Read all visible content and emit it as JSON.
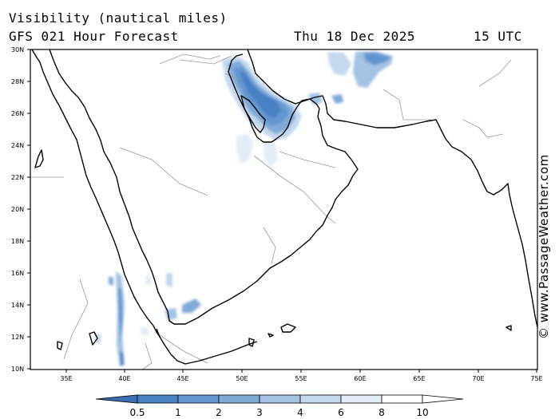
{
  "header": {
    "title": "Visibility (nautical miles)",
    "model": "GFS 021 Hour Forecast",
    "date": "Thu 18 Dec 2025",
    "time": "15 UTC"
  },
  "credit": "© www.PassageWeather.com",
  "map": {
    "lat_labels": [
      "30N",
      "28N",
      "26N",
      "24N",
      "22N",
      "20N",
      "18N",
      "16N",
      "14N",
      "12N",
      "10N"
    ],
    "lon_labels": [
      "35E",
      "40E",
      "45E",
      "50E",
      "55E",
      "60E",
      "65E",
      "70E",
      "75E"
    ]
  },
  "legend": {
    "labels": [
      "0.5",
      "1",
      "2",
      "3",
      "4",
      "6",
      "8",
      "10"
    ],
    "colors": [
      "#3a70b4",
      "#4a80c4",
      "#6496d0",
      "#80aad8",
      "#a3c2e4",
      "#c4d8ee",
      "#e3edf7",
      "#ffffff",
      "#ffffff"
    ]
  }
}
